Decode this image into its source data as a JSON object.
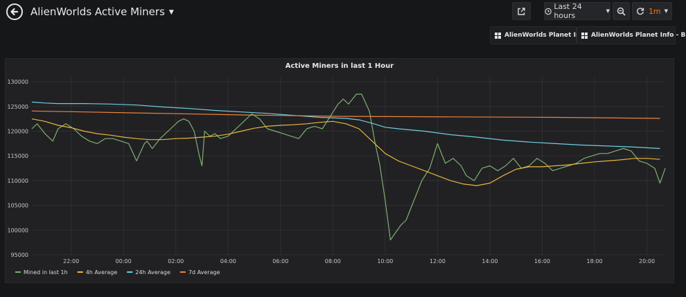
{
  "header": {
    "title": "AlienWorlds Active Miners",
    "time_range": "Last 24 hours",
    "refresh_interval": "1m",
    "icons": {
      "back": "arrow-left-circle-icon",
      "share": "share-icon",
      "clock": "clock-icon",
      "zoom": "zoom-out-icon",
      "refresh": "refresh-icon",
      "dashboard_link": "grid-icon"
    }
  },
  "links": [
    {
      "label": "AlienWorlds Planet Info"
    },
    {
      "label": "AlienWorlds Planet Info - BIG"
    }
  ],
  "colors": {
    "background": "#161719",
    "panel": "#212124",
    "accent": "#eb7b18",
    "mined": "#7eb26d",
    "avg4h": "#eab839",
    "avg24h": "#6ed0e0",
    "avg7d": "#ef843c"
  },
  "chart_data": {
    "type": "line",
    "title": "Active Miners in last 1 Hour",
    "x_unit": "hours since 20:30 previous day",
    "xlim": [
      0,
      24.2
    ],
    "ylim": [
      95000,
      131000
    ],
    "yticks": [
      95000,
      100000,
      105000,
      110000,
      115000,
      120000,
      125000,
      130000
    ],
    "ytick_labels": [
      "95000",
      "100000",
      "105000",
      "110000",
      "115000",
      "120000",
      "125000",
      "130000"
    ],
    "xticks": [
      1.5,
      3.5,
      5.5,
      7.5,
      9.5,
      11.5,
      13.5,
      15.5,
      17.5,
      19.5,
      21.5,
      23.5
    ],
    "xtick_labels": [
      "22:00",
      "00:00",
      "02:00",
      "04:00",
      "06:00",
      "08:00",
      "10:00",
      "12:00",
      "14:00",
      "16:00",
      "18:00",
      "20:00"
    ],
    "grid": true,
    "legend_position": "bottom-left",
    "series": [
      {
        "name": "Mined in last 1h",
        "color": "#7eb26d",
        "x": [
          0,
          0.2,
          0.5,
          0.8,
          1.0,
          1.3,
          1.6,
          1.9,
          2.2,
          2.5,
          2.8,
          3.1,
          3.4,
          3.7,
          4.0,
          4.3,
          4.4,
          4.6,
          4.9,
          5.3,
          5.6,
          5.8,
          6.0,
          6.2,
          6.4,
          6.5,
          6.6,
          6.8,
          7.0,
          7.2,
          7.5,
          7.8,
          8.1,
          8.4,
          8.7,
          9.0,
          9.3,
          9.6,
          9.9,
          10.2,
          10.5,
          10.8,
          11.1,
          11.4,
          11.7,
          11.9,
          12.1,
          12.4,
          12.6,
          12.9,
          13.1,
          13.3,
          13.5,
          13.7,
          13.9,
          14.1,
          14.3,
          14.6,
          14.9,
          15.2,
          15.5,
          15.8,
          16.1,
          16.4,
          16.6,
          16.9,
          17.2,
          17.5,
          17.8,
          18.1,
          18.4,
          18.7,
          19.0,
          19.3,
          19.6,
          19.9,
          20.2,
          20.5,
          20.8,
          21.1,
          21.4,
          21.7,
          22.0,
          22.3,
          22.6,
          22.9,
          23.2,
          23.5,
          23.8,
          24.0,
          24.2
        ],
        "y": [
          120500,
          121500,
          119500,
          118000,
          120500,
          121500,
          120500,
          119000,
          118000,
          117500,
          118500,
          118500,
          118000,
          117500,
          114000,
          117500,
          118000,
          116500,
          118500,
          120500,
          122000,
          122500,
          122000,
          120000,
          115000,
          113000,
          120000,
          119000,
          119500,
          118500,
          119000,
          120500,
          122000,
          123500,
          122500,
          120500,
          120000,
          119500,
          119000,
          118500,
          120500,
          121000,
          120500,
          123000,
          125500,
          126500,
          125500,
          127500,
          127500,
          124000,
          118000,
          113000,
          106000,
          98000,
          99500,
          101000,
          102000,
          106000,
          110000,
          112500,
          117500,
          113500,
          114500,
          113000,
          111000,
          110000,
          112500,
          113000,
          112000,
          113000,
          114500,
          112500,
          113000,
          114500,
          113500,
          112000,
          112500,
          113000,
          113500,
          114500,
          115000,
          115500,
          115500,
          116000,
          116500,
          116000,
          114000,
          113500,
          112500,
          109500,
          112500
        ]
      },
      {
        "name": "4h Average",
        "color": "#eab839",
        "x": [
          0,
          0.5,
          1.0,
          1.5,
          2.0,
          2.5,
          3.0,
          3.5,
          4.0,
          4.5,
          5.0,
          5.5,
          6.0,
          6.5,
          7.0,
          7.5,
          8.0,
          8.5,
          9.0,
          9.5,
          10.0,
          10.5,
          11.0,
          11.5,
          12.0,
          12.5,
          13.0,
          13.5,
          14.0,
          14.5,
          15.0,
          15.5,
          16.0,
          16.5,
          17.0,
          17.5,
          18.0,
          18.5,
          19.0,
          19.5,
          20.0,
          20.5,
          21.0,
          21.5,
          22.0,
          22.5,
          23.0,
          23.5,
          24.0
        ],
        "y": [
          122500,
          122000,
          121200,
          120700,
          120000,
          119500,
          119200,
          118800,
          118500,
          118300,
          118300,
          118500,
          118600,
          118800,
          119000,
          119400,
          120000,
          120600,
          121000,
          121200,
          121300,
          121500,
          121800,
          122000,
          121500,
          120500,
          118000,
          115500,
          114000,
          113000,
          112000,
          111000,
          110000,
          109300,
          109000,
          109500,
          111000,
          112300,
          112800,
          112800,
          113000,
          113200,
          113500,
          113800,
          114000,
          114200,
          114500,
          114500,
          114300
        ]
      },
      {
        "name": "24h Average",
        "color": "#6ed0e0",
        "x": [
          0,
          0.5,
          1.0,
          2.0,
          3.0,
          4.0,
          5.0,
          6.0,
          7.0,
          8.0,
          9.0,
          10.0,
          11.0,
          12.0,
          12.5,
          13.0,
          13.5,
          14.0,
          15.0,
          16.0,
          17.0,
          18.0,
          19.0,
          20.0,
          21.0,
          22.0,
          23.0,
          24.0
        ],
        "y": [
          125900,
          125700,
          125600,
          125600,
          125500,
          125300,
          124900,
          124600,
          124200,
          123900,
          123600,
          123200,
          122800,
          122600,
          122300,
          121600,
          120800,
          120500,
          120000,
          119300,
          118800,
          118200,
          117800,
          117500,
          117200,
          117000,
          116800,
          116500
        ]
      },
      {
        "name": "7d Average",
        "color": "#ef843c",
        "x": [
          0,
          4.0,
          8.0,
          12.0,
          16.0,
          20.0,
          24.0
        ],
        "y": [
          124100,
          123700,
          123300,
          123000,
          122900,
          122800,
          122600
        ]
      }
    ]
  }
}
